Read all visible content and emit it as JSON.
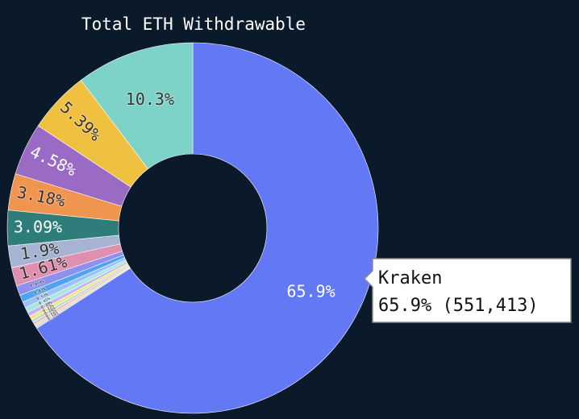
{
  "chart_data": {
    "type": "donut",
    "title": "Total ETH Withdrawable",
    "values": [
      65.9,
      0.19,
      0.18,
      0.22,
      0.28,
      0.33,
      0.38,
      0.45,
      0.53,
      0.63,
      0.859,
      1.61,
      1.9,
      3.09,
      3.18,
      4.58,
      5.39,
      10.3
    ],
    "value_labels": [
      "65.9%",
      "0.19%",
      "0.18%",
      "0.22%",
      "0.28%",
      "0.33%",
      "0.38%",
      "0.45%",
      "0.53%",
      "0.63%",
      "0.859%",
      "1.61%",
      "1.9%",
      "3.09%",
      "3.18%",
      "4.58%",
      "5.39%",
      "10.3%"
    ],
    "colors": [
      "#6378f5",
      "#c9d8e8",
      "#e8d6a8",
      "#f4b6c2",
      "#b6e0c8",
      "#f7e08a",
      "#c3b6f0",
      "#a8e6e0",
      "#9cc0f8",
      "#4fa3f0",
      "#8f8ff0",
      "#e08fb0",
      "#a7b3d3",
      "#2e7d7a",
      "#f0954f",
      "#9a6bc4",
      "#f0c040",
      "#7dd3c8"
    ],
    "tooltip": {
      "name": "Kraken",
      "text": "65.9% (551,413)"
    }
  }
}
